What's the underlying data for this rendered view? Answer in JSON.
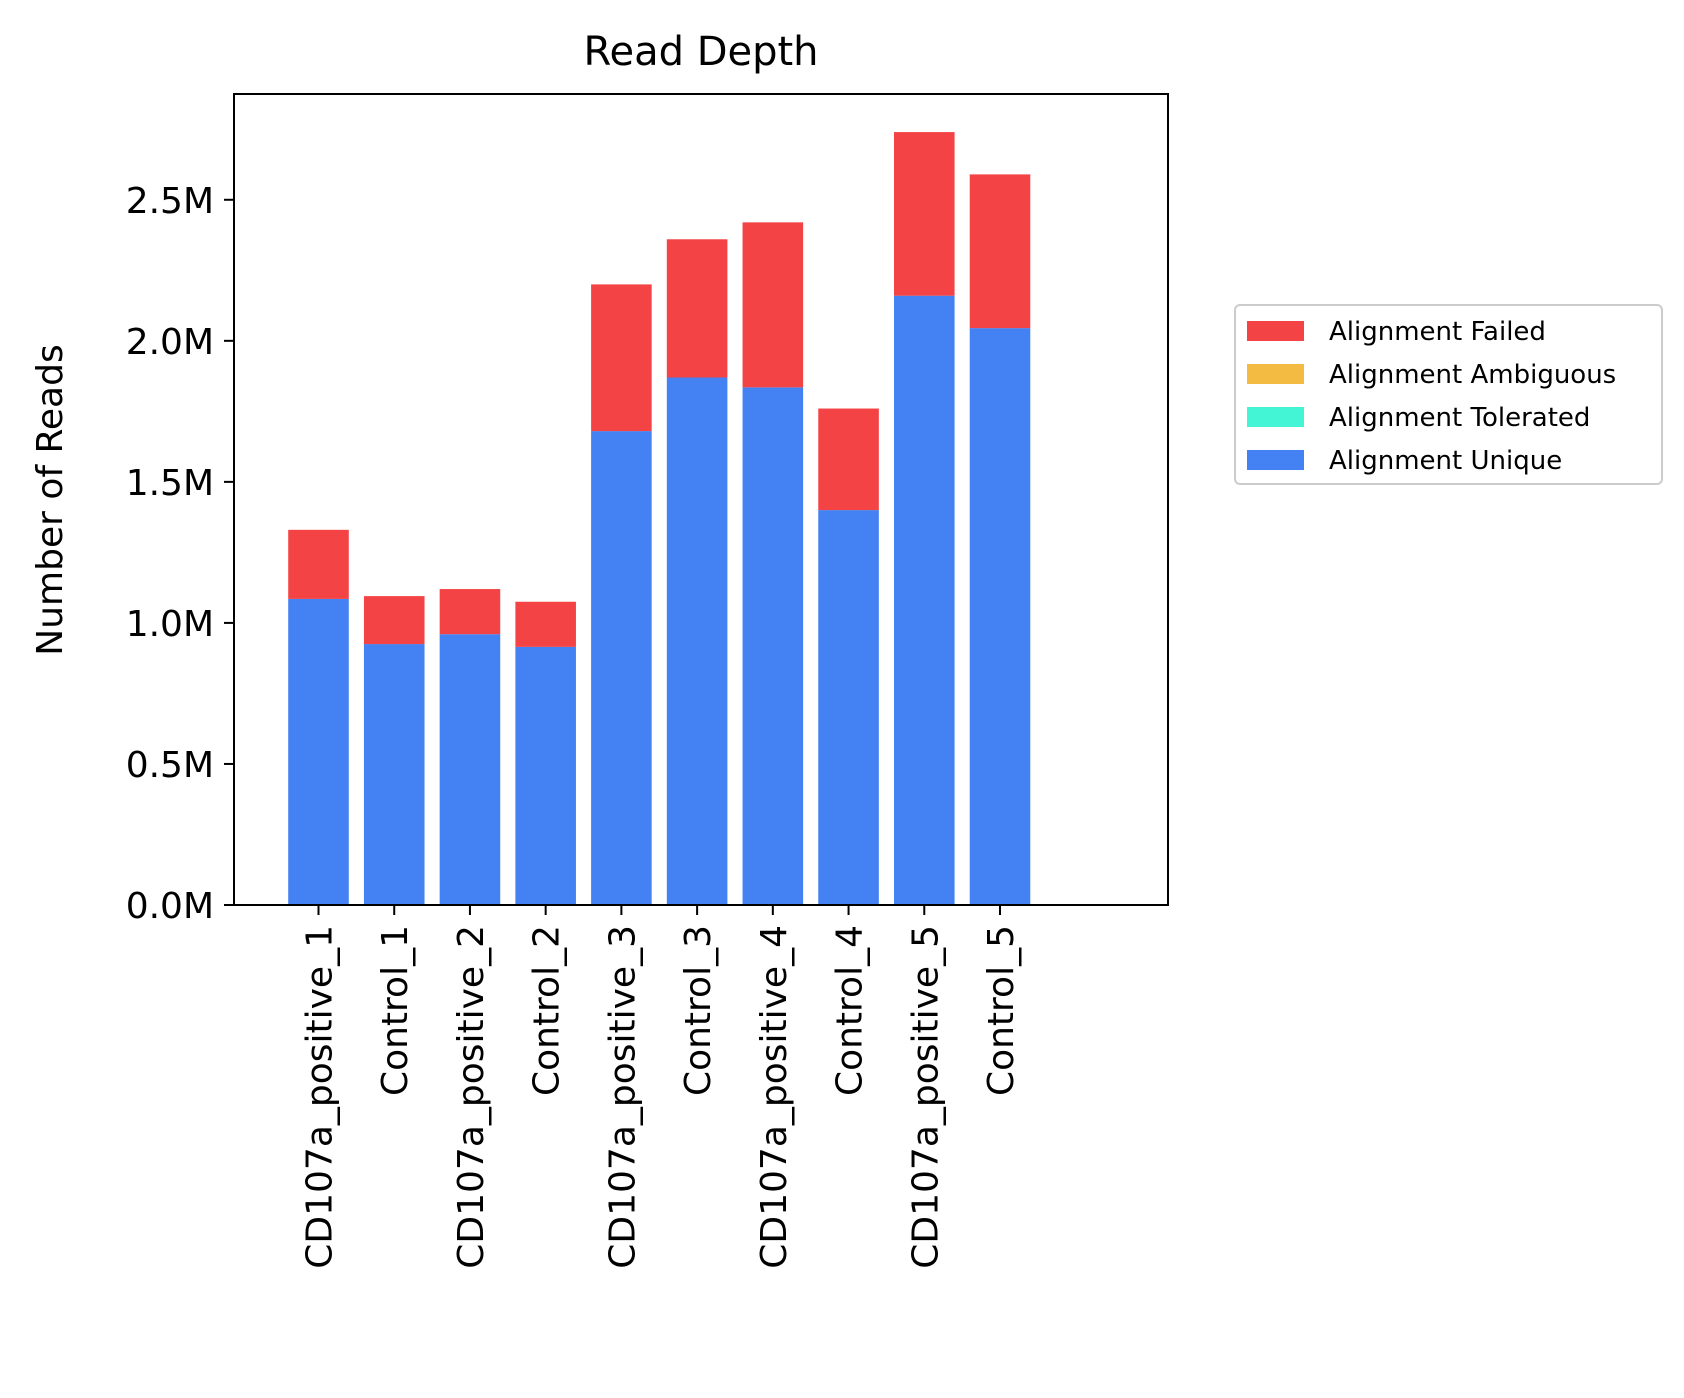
{
  "chart_data": {
    "type": "bar",
    "stacked": true,
    "title": "Read Depth",
    "xlabel": "",
    "ylabel": "Number of Reads",
    "ylim": [
      0,
      2.875
    ],
    "y_unit_suffix": "M",
    "yticks": [
      0.0,
      0.5,
      1.0,
      1.5,
      2.0,
      2.5
    ],
    "ytick_labels": [
      "0.0M",
      "0.5M",
      "1.0M",
      "1.5M",
      "2.0M",
      "2.5M"
    ],
    "grid": false,
    "legend_position": "right",
    "categories": [
      "CD107a_positive_1",
      "Control_1",
      "CD107a_positive_2",
      "Control_2",
      "CD107a_positive_3",
      "Control_3",
      "CD107a_positive_4",
      "Control_4",
      "CD107a_positive_5",
      "Control_5"
    ],
    "series": [
      {
        "name": "Alignment Unique",
        "color": "#4481f2",
        "values": [
          1.085,
          0.925,
          0.96,
          0.915,
          1.68,
          1.87,
          1.835,
          1.4,
          2.16,
          2.045
        ]
      },
      {
        "name": "Alignment Tolerated",
        "color": "#43f5d5",
        "values": [
          0,
          0,
          0,
          0,
          0,
          0,
          0,
          0,
          0,
          0
        ]
      },
      {
        "name": "Alignment Ambiguous",
        "color": "#f4bb43",
        "values": [
          0,
          0,
          0,
          0,
          0,
          0,
          0,
          0,
          0,
          0
        ]
      },
      {
        "name": "Alignment Failed",
        "color": "#f44344",
        "values": [
          0.245,
          0.17,
          0.16,
          0.16,
          0.52,
          0.49,
          0.585,
          0.36,
          0.58,
          0.545
        ]
      }
    ],
    "legend_order": [
      "Alignment Failed",
      "Alignment Ambiguous",
      "Alignment Tolerated",
      "Alignment Unique"
    ]
  }
}
